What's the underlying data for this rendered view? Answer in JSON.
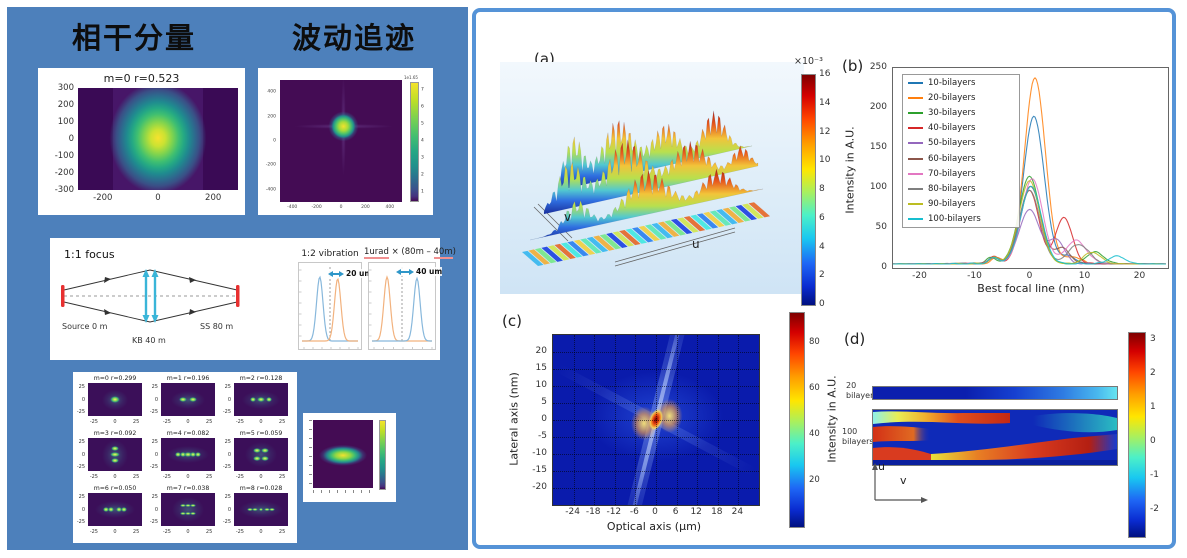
{
  "left_panel": {
    "heading_coherent": "相干分量",
    "heading_wave": "波动追迹",
    "m0_plot": {
      "title": "m=0 r=0.523",
      "yticks": [
        300,
        200,
        100,
        0,
        -100,
        -200,
        -300
      ],
      "xticks": [
        -200,
        0,
        200
      ]
    },
    "wave_plot": {
      "yticks": [
        400,
        200,
        0,
        -200,
        -400
      ],
      "xticks": [
        -400,
        -200,
        0,
        200,
        400
      ],
      "colorbar_scale": "1e1.65",
      "colorbar_ticks": [
        7,
        6,
        5,
        4,
        3,
        2,
        1
      ]
    },
    "optics": {
      "focus_title": "1:1 focus",
      "source_label": "Source 0 m",
      "kb_label": "KB 40 m",
      "ss_label": "SS 80 m",
      "vibration_title": "1:2 vibration",
      "vibration_shift": "20 um",
      "urad_title_parts": [
        "1urad",
        " × (80m – ",
        "40m",
        ")"
      ],
      "urad_shift": "40 um"
    },
    "mode_grid": {
      "yticks": [
        25,
        0,
        -25
      ],
      "xticks": [
        -25,
        0,
        25
      ],
      "cells": [
        {
          "title": "m=0 r=0.299",
          "dots": [
            [
              0,
              0,
              4
            ]
          ]
        },
        {
          "title": "m=1 r=0.196",
          "dots": [
            [
              -5,
              0,
              3
            ],
            [
              5,
              0,
              3
            ]
          ]
        },
        {
          "title": "m=2 r=0.128",
          "dots": [
            [
              -8,
              0,
              2.5
            ],
            [
              0,
              0,
              3
            ],
            [
              8,
              0,
              2.5
            ]
          ]
        },
        {
          "title": "m=3 r=0.092",
          "dots": [
            [
              0,
              -6,
              3
            ],
            [
              0,
              0,
              3.5
            ],
            [
              0,
              6,
              3
            ]
          ]
        },
        {
          "title": "m=4 r=0.082",
          "dots": [
            [
              -10,
              0,
              2.4
            ],
            [
              -5,
              0,
              2.4
            ],
            [
              0,
              0,
              2.8
            ],
            [
              5,
              0,
              2.4
            ],
            [
              10,
              0,
              2.4
            ]
          ]
        },
        {
          "title": "m=5 r=0.059",
          "dots": [
            [
              -4,
              -4,
              2.8
            ],
            [
              4,
              -4,
              2.8
            ],
            [
              -4,
              4,
              2.8
            ],
            [
              4,
              4,
              2.8
            ]
          ]
        },
        {
          "title": "m=6 r=0.050",
          "dots": [
            [
              -9,
              0,
              2.4
            ],
            [
              -4,
              0,
              2.4
            ],
            [
              4,
              0,
              2.4
            ],
            [
              9,
              0,
              2.4
            ]
          ]
        },
        {
          "title": "m=7 r=0.038",
          "dots": [
            [
              -5,
              -4,
              2.3
            ],
            [
              0,
              -4,
              2.3
            ],
            [
              5,
              -4,
              2.3
            ],
            [
              -5,
              4,
              2.3
            ],
            [
              0,
              4,
              2.3
            ],
            [
              5,
              4,
              2.3
            ]
          ]
        },
        {
          "title": "m=8 r=0.028",
          "dots": [
            [
              -11,
              0,
              2.2
            ],
            [
              -6,
              0,
              2.2
            ],
            [
              0,
              0,
              1.7
            ],
            [
              6,
              0,
              2.2
            ],
            [
              11,
              0,
              2.2
            ]
          ]
        }
      ]
    }
  },
  "figure": {
    "panel_a": {
      "label": "(a)",
      "axis_u": "u",
      "axis_v": "v",
      "colorbar_scale": "×10⁻³"
    },
    "panel_b": {
      "label": "(b)"
    },
    "panel_c": {
      "label": "(c)"
    },
    "panel_d": {
      "label": "(d)",
      "strip1_l1": "20",
      "strip1_l2": "bilayers",
      "strip2_l1": "100",
      "strip2_l2": "bilayers",
      "axis_u": "u",
      "axis_v": "v"
    }
  },
  "chart_data": [
    {
      "id": "coherent_m0",
      "type": "heatmap",
      "title": "m=0 r=0.523",
      "xticks": [
        -200,
        0,
        200
      ],
      "yticks": [
        300,
        200,
        100,
        0,
        -100,
        -200,
        -300
      ],
      "xlim": [
        -290,
        290
      ],
      "ylim": [
        -300,
        300
      ],
      "description": "viridis heatmap, bright elliptical Gaussian spot centered near (0,0), lighter vertical band through centre"
    },
    {
      "id": "wave_tracing",
      "type": "heatmap",
      "xticks": [
        -400,
        -200,
        0,
        200,
        400
      ],
      "yticks": [
        400,
        200,
        0,
        -200,
        -400
      ],
      "xlim": [
        -500,
        500
      ],
      "ylim": [
        -500,
        500
      ],
      "colorbar_scale": "1e1.65",
      "colorbar_ticks": [
        7,
        6,
        5,
        4,
        3,
        2,
        1
      ],
      "description": "viridis heatmap, compact bright focal spot slightly above centre with faint cross-shaped wings"
    },
    {
      "id": "vibration",
      "type": "line",
      "title": "1:2 vibration",
      "annotation": "20 um",
      "series": [
        {
          "color": "#88b8dc",
          "peak_frac": 0.34,
          "height_frac": 1.0
        },
        {
          "color": "#f2b27e",
          "peak_frac": 0.62,
          "height_frac": 0.97
        }
      ]
    },
    {
      "id": "urad_shift",
      "type": "line",
      "title": "1urad × (80m – 40m)",
      "annotation": "40 um",
      "series": [
        {
          "color": "#f2b27e",
          "peak_frac": 0.28,
          "height_frac": 1.0
        },
        {
          "color": "#88b8dc",
          "peak_frac": 0.72,
          "height_frac": 0.98
        }
      ]
    },
    {
      "id": "mode_decomposition",
      "type": "heatmap",
      "cells": [
        "m=0 r=0.299",
        "m=1 r=0.196",
        "m=2 r=0.128",
        "m=3 r=0.092",
        "m=4 r=0.082",
        "m=5 r=0.059",
        "m=6 r=0.050",
        "m=7 r=0.038",
        "m=8 r=0.028"
      ],
      "xticks": [
        -25,
        0,
        25
      ],
      "yticks": [
        25,
        0,
        -25
      ],
      "xlim": [
        -32,
        32
      ],
      "ylim": [
        -32,
        32
      ]
    },
    {
      "id": "b_intensity",
      "type": "line",
      "xlabel": "Best focal line (nm)",
      "ylabel": "Intensity in A.U.",
      "xlim": [
        -25,
        25
      ],
      "ylim": [
        0,
        250
      ],
      "xticks": [
        -20,
        -10,
        0,
        10,
        20
      ],
      "yticks": [
        0,
        50,
        100,
        150,
        200,
        250
      ],
      "legend_position": "upper left",
      "series": [
        {
          "name": "10-bilayers",
          "color": "#1f77b4",
          "peaks": [
            [
              0.8,
              190,
              1.9
            ],
            [
              -6.5,
              8,
              0.9
            ],
            [
              7,
              10,
              1.4
            ]
          ]
        },
        {
          "name": "20-bilayers",
          "color": "#ff7f0e",
          "peaks": [
            [
              1.0,
              240,
              1.9
            ],
            [
              -6,
              8,
              0.9
            ],
            [
              8,
              9,
              1.4
            ]
          ]
        },
        {
          "name": "30-bilayers",
          "color": "#2ca02c",
          "peaks": [
            [
              0,
              113,
              1.9
            ],
            [
              12,
              15,
              1.6
            ],
            [
              -7,
              8,
              0.9
            ]
          ]
        },
        {
          "name": "40-bilayers",
          "color": "#d62728",
          "peaks": [
            [
              0,
              95,
              1.7
            ],
            [
              6.3,
              60,
              1.5
            ],
            [
              -6.5,
              10,
              0.9
            ]
          ]
        },
        {
          "name": "50-bilayers",
          "color": "#9467bd",
          "peaks": [
            [
              0,
              70,
              1.9
            ],
            [
              5,
              30,
              1.4
            ],
            [
              -6.5,
              8,
              0.9
            ]
          ]
        },
        {
          "name": "60-bilayers",
          "color": "#8c564b",
          "peaks": [
            [
              0.2,
              100,
              1.9
            ],
            [
              6,
              20,
              1.4
            ],
            [
              -6.5,
              8,
              0.9
            ]
          ]
        },
        {
          "name": "70-bilayers",
          "color": "#e377c2",
          "peaks": [
            [
              0.5,
              110,
              1.9
            ],
            [
              8.5,
              30,
              1.9
            ],
            [
              -6.5,
              8,
              0.9
            ]
          ]
        },
        {
          "name": "80-bilayers",
          "color": "#7f7f7f",
          "peaks": [
            [
              0,
              95,
              1.9
            ],
            [
              9,
              25,
              1.9
            ],
            [
              -6.5,
              8,
              0.9
            ]
          ]
        },
        {
          "name": "90-bilayers",
          "color": "#bcbd22",
          "peaks": [
            [
              0,
              107,
              1.9
            ],
            [
              11.5,
              15,
              1.5
            ],
            [
              -6.5,
              8,
              0.9
            ]
          ]
        },
        {
          "name": "100-bilayers",
          "color": "#17becf",
          "peaks": [
            [
              0.3,
              100,
              1.9
            ],
            [
              16,
              10,
              1.5
            ],
            [
              -6.5,
              8,
              0.9
            ]
          ]
        }
      ]
    },
    {
      "id": "focal_plane_intensity",
      "type": "heatmap",
      "xlabel": "Optical axis (μm)",
      "ylabel": "Lateral axis (nm)",
      "xlim": [
        -30,
        30
      ],
      "ylim": [
        -25,
        25
      ],
      "xticks": [
        -24,
        -18,
        -12,
        -6,
        0,
        6,
        12,
        18,
        24
      ],
      "yticks": [
        20,
        15,
        10,
        5,
        0,
        -5,
        -10,
        -15,
        -20
      ],
      "colorbar_label": "Intensity in A.U.",
      "colorbar_ticks": [
        80,
        60,
        40,
        20
      ],
      "grid": "dotted",
      "description": "jet colormap, deep-blue field with hot red/orange focal spot at origin and faint diagonal caustic streaks"
    },
    {
      "id": "bilayer_phase_maps",
      "type": "heatmap",
      "rows": [
        "20 bilayers",
        "100 bilayers"
      ],
      "axes": [
        "u",
        "v"
      ],
      "colorbar_ticks": [
        3,
        2,
        1,
        0,
        -1,
        -2
      ],
      "description": "20-bilayer strip: uniform dark blue grading to cyan at right; 100-bilayer strip: wavy red/yellow/blue phase bands"
    },
    {
      "id": "surface_3d",
      "type": "surface3d",
      "axes": [
        "u",
        "v"
      ],
      "colorbar_scale": "×10⁻³",
      "colorbar_ticks": [
        16,
        14,
        12,
        10,
        8,
        6,
        4,
        2,
        0
      ],
      "description": "rainbow 3D surface with comb-like spiky ridges over a striped base plane"
    }
  ]
}
